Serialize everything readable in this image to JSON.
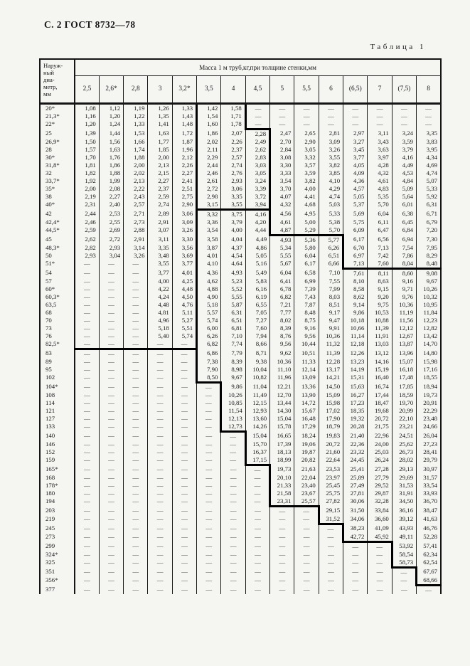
{
  "page": {
    "header": "С. 2 ГОСТ 8732—78",
    "table_label": "Таблица 1"
  },
  "table": {
    "corner_header": "Наруж-\nный\nдиа-\nметр,\nмм",
    "span_header": "Масса 1 м труб,кг,при толщине стенки,мм",
    "columns": [
      "2,5",
      "2,6*",
      "2,8",
      "3",
      "3,2*",
      "3,5",
      "4",
      "4,5",
      "5",
      "5,5",
      "6",
      "(6,5)",
      "7",
      "(7,5)",
      "8"
    ],
    "rows": [
      {
        "d": "20*",
        "v": [
          "1,08",
          "1,12",
          "1,19",
          "1,26",
          "1,33",
          "1,42",
          "1,58",
          "—",
          "—",
          "—",
          "—",
          "—",
          "—",
          "—",
          "—"
        ]
      },
      {
        "d": "21,3*",
        "v": [
          "1,16",
          "1,20",
          "1,22",
          "1,35",
          "1,43",
          "1,54",
          "1,71",
          "—",
          "—",
          "—",
          "—",
          "—",
          "—",
          "—",
          "—"
        ]
      },
      {
        "d": "22*",
        "v": [
          "1,20",
          "1,24",
          "1,33",
          "1,41",
          "1,48",
          "1,60",
          "1,78",
          "—",
          "—",
          "—",
          "—",
          "—",
          "—",
          "—",
          "—"
        ]
      },
      {
        "d": "25",
        "v": [
          "1,39",
          "1,44",
          "1,53",
          "1,63",
          "1,72",
          "1,86",
          "2,07",
          "2,28",
          "2,47",
          "2,65",
          "2,81",
          "2,97",
          "3,11",
          "3,24",
          "3,35"
        ]
      },
      {
        "d": "26,9*",
        "v": [
          "1,50",
          "1,56",
          "1,66",
          "1,77",
          "1,87",
          "2,02",
          "2,26",
          "2,49",
          "2,70",
          "2,90",
          "3,09",
          "3,27",
          "3,43",
          "3,59",
          "3,83"
        ]
      },
      {
        "d": "28",
        "v": [
          "1,57",
          "1,63",
          "1,74",
          "1,85",
          "1,96",
          "2,11",
          "2,37",
          "2,62",
          "2,84",
          "3,05",
          "3,26",
          "3,45",
          "3,63",
          "3,79",
          "3,95"
        ]
      },
      {
        "d": "30*",
        "v": [
          "1,70",
          "1,76",
          "1,88",
          "2,00",
          "2,12",
          "2,29",
          "2,57",
          "2,83",
          "3,08",
          "3,32",
          "3,55",
          "3,77",
          "3,97",
          "4,16",
          "4,34"
        ]
      },
      {
        "d": "31,8*",
        "v": [
          "1,81",
          "1,86",
          "2,00",
          "2,13",
          "2,26",
          "2,44",
          "2,74",
          "3,03",
          "3,30",
          "3,57",
          "3,82",
          "4,05",
          "4,28",
          "4,49",
          "4,69"
        ]
      },
      {
        "d": "32",
        "v": [
          "1,82",
          "1,88",
          "2,02",
          "2,15",
          "2,27",
          "2,46",
          "2,76",
          "3,05",
          "3,33",
          "3,59",
          "3,85",
          "4,09",
          "4,32",
          "4,53",
          "4,74"
        ]
      },
      {
        "d": "33,7*",
        "v": [
          "1,92",
          "1,99",
          "2,13",
          "2,27",
          "2,41",
          "2,61",
          "2,93",
          "3,24",
          "3,54",
          "3,82",
          "4,10",
          "4,36",
          "4,61",
          "4,84",
          "5,07"
        ]
      },
      {
        "d": "35*",
        "v": [
          "2,00",
          "2,08",
          "2,22",
          "2,37",
          "2,51",
          "2,72",
          "3,06",
          "3,39",
          "3,70",
          "4,00",
          "4,29",
          "4,57",
          "4,83",
          "5,09",
          "5,33"
        ]
      },
      {
        "d": "38",
        "v": [
          "2,19",
          "2,27",
          "2,43",
          "2,59",
          "2,75",
          "2,98",
          "3,35",
          "3,72",
          "4,07",
          "4,41",
          "4,74",
          "5,05",
          "5,35",
          "5,64",
          "5,92"
        ]
      },
      {
        "d": "40*",
        "v": [
          "2,31",
          "2,40",
          "2,57",
          "2,74",
          "2,90",
          "3,15",
          "3,55",
          "3,94",
          "4,32",
          "4,68",
          "5,03",
          "5,37",
          "5,70",
          "6,01",
          "6,31"
        ]
      },
      {
        "d": "42",
        "v": [
          "2,44",
          "2,53",
          "2,71",
          "2,89",
          "3,06",
          "3,32",
          "3,75",
          "4,16",
          "4,56",
          "4,95",
          "5,33",
          "5,69",
          "6,04",
          "6,38",
          "6,71"
        ]
      },
      {
        "d": "42,4*",
        "v": [
          "2,46",
          "2,55",
          "2,73",
          "2,91",
          "3,09",
          "3,36",
          "3,79",
          "4,20",
          "4,61",
          "5,00",
          "5,38",
          "5,75",
          "6,11",
          "6,45",
          "6,79"
        ]
      },
      {
        "d": "44,5*",
        "v": [
          "2,59",
          "2,69",
          "2,88",
          "3,07",
          "3,26",
          "3,54",
          "4,00",
          "4,44",
          "4,87",
          "5,29",
          "5,70",
          "6,09",
          "6,47",
          "6,84",
          "7,20"
        ]
      },
      {
        "d": "45",
        "v": [
          "2,62",
          "2,72",
          "2,91",
          "3,11",
          "3,30",
          "3,58",
          "4,04",
          "4,49",
          "4,93",
          "5,36",
          "5,77",
          "6,17",
          "6,56",
          "6,94",
          "7,30"
        ]
      },
      {
        "d": "48,3*",
        "v": [
          "2,82",
          "2,93",
          "3,14",
          "3,35",
          "3,56",
          "3,87",
          "4,37",
          "4,86",
          "5,34",
          "5,80",
          "6,26",
          "6,70",
          "7,13",
          "7,54",
          "7,95"
        ]
      },
      {
        "d": "50",
        "v": [
          "2,93",
          "3,04",
          "3,26",
          "3,48",
          "3,69",
          "4,01",
          "4,54",
          "5,05",
          "5,55",
          "6,04",
          "6,51",
          "6,97",
          "7,42",
          "7,86",
          "8,29"
        ]
      },
      {
        "d": "51*",
        "v": [
          "—",
          "—",
          "—",
          "3,55",
          "3,77",
          "4,10",
          "4,64",
          "5,16",
          "5,67",
          "6,17",
          "6,66",
          "7,13",
          "7,60",
          "8,04",
          "8,48"
        ]
      },
      {
        "d": "54",
        "v": [
          "—",
          "—",
          "—",
          "3,77",
          "4,01",
          "4,36",
          "4,93",
          "5,49",
          "6,04",
          "6,58",
          "7,10",
          "7,61",
          "8,11",
          "8,60",
          "9,08"
        ]
      },
      {
        "d": "57",
        "v": [
          "—",
          "—",
          "—",
          "4,00",
          "4,25",
          "4,62",
          "5,23",
          "5,83",
          "6,41",
          "6,99",
          "7,55",
          "8,10",
          "8,63",
          "9,16",
          "9,67"
        ]
      },
      {
        "d": "60*",
        "v": [
          "—",
          "—",
          "—",
          "4,22",
          "4,48",
          "4,88",
          "5,52",
          "6,16",
          "6,78",
          "7,39",
          "7,99",
          "8,58",
          "9,15",
          "9,71",
          "10,26"
        ]
      },
      {
        "d": "60,3*",
        "v": [
          "—",
          "—",
          "—",
          "4,24",
          "4,50",
          "4,90",
          "5,55",
          "6,19",
          "6,82",
          "7,43",
          "8,03",
          "8,62",
          "9,20",
          "9,76",
          "10,32"
        ]
      },
      {
        "d": "63,5",
        "v": [
          "—",
          "—",
          "—",
          "4,48",
          "4,76",
          "5,18",
          "5,87",
          "6,55",
          "7,21",
          "7,87",
          "8,51",
          "9,14",
          "9,75",
          "10,36",
          "10,95"
        ]
      },
      {
        "d": "68",
        "v": [
          "—",
          "—",
          "—",
          "4,81",
          "5,11",
          "5,57",
          "6,31",
          "7,05",
          "7,77",
          "8,48",
          "9,17",
          "9,86",
          "10,53",
          "11,19",
          "11,84"
        ]
      },
      {
        "d": "70",
        "v": [
          "—",
          "—",
          "—",
          "4,96",
          "5,27",
          "5,74",
          "6,51",
          "7,27",
          "8,02",
          "8,75",
          "9,47",
          "10,18",
          "10,88",
          "11,56",
          "12,23"
        ]
      },
      {
        "d": "73",
        "v": [
          "—",
          "—",
          "—",
          "5,18",
          "5,51",
          "6,00",
          "6,81",
          "7,60",
          "8,39",
          "9,16",
          "9,91",
          "10,66",
          "11,39",
          "12,12",
          "12,82"
        ]
      },
      {
        "d": "76",
        "v": [
          "—",
          "—",
          "—",
          "5,40",
          "5,74",
          "6,26",
          "7,10",
          "7,94",
          "8,76",
          "9,56",
          "10,36",
          "11,14",
          "11,91",
          "12,67",
          "13,42"
        ]
      },
      {
        "d": "82,5*",
        "v": [
          "—",
          "—",
          "—",
          "—",
          "—",
          "6,82",
          "7,74",
          "8,66",
          "9,56",
          "10,44",
          "11,32",
          "12,18",
          "13,03",
          "13,87",
          "14,70"
        ]
      },
      {
        "d": "83",
        "v": [
          "—",
          "—",
          "—",
          "—",
          "—",
          "6,86",
          "7,79",
          "8,71",
          "9,62",
          "10,51",
          "11,39",
          "12,26",
          "13,12",
          "13,96",
          "14,80"
        ]
      },
      {
        "d": "89",
        "v": [
          "—",
          "—",
          "—",
          "—",
          "—",
          "7,38",
          "8,39",
          "9,38",
          "10,36",
          "11,33",
          "12,28",
          "13,23",
          "14,16",
          "15,07",
          "15,98"
        ]
      },
      {
        "d": "95",
        "v": [
          "—",
          "—",
          "—",
          "—",
          "—",
          "7,90",
          "8,98",
          "10,04",
          "11,10",
          "12,14",
          "13,17",
          "14,19",
          "15,19",
          "16,18",
          "17,16"
        ]
      },
      {
        "d": "102",
        "v": [
          "—",
          "—",
          "—",
          "—",
          "—",
          "8,50",
          "9,67",
          "10,82",
          "11,96",
          "13,09",
          "14,21",
          "15,31",
          "16,40",
          "17,48",
          "18,55"
        ]
      },
      {
        "d": "104*",
        "v": [
          "—",
          "—",
          "—",
          "—",
          "—",
          "—",
          "9,86",
          "11,04",
          "12,21",
          "13,36",
          "14,50",
          "15,63",
          "16,74",
          "17,85",
          "18,94"
        ]
      },
      {
        "d": "108",
        "v": [
          "—",
          "—",
          "—",
          "—",
          "—",
          "—",
          "10,26",
          "11,49",
          "12,70",
          "13,90",
          "15,09",
          "16,27",
          "17,44",
          "18,59",
          "19,73"
        ]
      },
      {
        "d": "114",
        "v": [
          "—",
          "—",
          "—",
          "—",
          "—",
          "—",
          "10,85",
          "12,15",
          "13,44",
          "14,72",
          "15,98",
          "17,23",
          "18,47",
          "19,70",
          "20,91"
        ]
      },
      {
        "d": "121",
        "v": [
          "—",
          "—",
          "—",
          "—",
          "—",
          "—",
          "11,54",
          "12,93",
          "14,30",
          "15,67",
          "17,02",
          "18,35",
          "19,68",
          "20,99",
          "22,29"
        ]
      },
      {
        "d": "127",
        "v": [
          "—",
          "—",
          "—",
          "—",
          "—",
          "—",
          "12,13",
          "13,60",
          "15,04",
          "16,48",
          "17,90",
          "19,32",
          "20,72",
          "22,10",
          "23,48"
        ]
      },
      {
        "d": "133",
        "v": [
          "—",
          "—",
          "—",
          "—",
          "—",
          "—",
          "12,73",
          "14,26",
          "15,78",
          "17,29",
          "18,79",
          "20,28",
          "21,75",
          "23,21",
          "24,66"
        ]
      },
      {
        "d": "140",
        "v": [
          "—",
          "—",
          "—",
          "—",
          "—",
          "—",
          "—",
          "15,04",
          "16,65",
          "18,24",
          "19,83",
          "21,40",
          "22,96",
          "24,51",
          "26,04"
        ]
      },
      {
        "d": "146",
        "v": [
          "—",
          "—",
          "—",
          "—",
          "—",
          "—",
          "—",
          "15,70",
          "17,39",
          "19,06",
          "20,72",
          "22,36",
          "24,00",
          "25,62",
          "27,23"
        ]
      },
      {
        "d": "152",
        "v": [
          "—",
          "—",
          "—",
          "—",
          "—",
          "—",
          "—",
          "16,37",
          "18,13",
          "19,87",
          "21,60",
          "23,32",
          "25,03",
          "26,73",
          "28,41"
        ]
      },
      {
        "d": "159",
        "v": [
          "—",
          "—",
          "—",
          "—",
          "—",
          "—",
          "—",
          "17,15",
          "18,99",
          "20,82",
          "22,64",
          "24,45",
          "26,24",
          "28,02",
          "29,79"
        ]
      },
      {
        "d": "165*",
        "v": [
          "—",
          "—",
          "—",
          "—",
          "—",
          "—",
          "—",
          "—",
          "19,73",
          "21,63",
          "23,53",
          "25,41",
          "27,28",
          "29,13",
          "30,97"
        ]
      },
      {
        "d": "168",
        "v": [
          "—",
          "—",
          "—",
          "—",
          "—",
          "—",
          "—",
          "—",
          "20,10",
          "22,04",
          "23,97",
          "25,89",
          "27,79",
          "29,69",
          "31,57"
        ]
      },
      {
        "d": "178*",
        "v": [
          "—",
          "—",
          "—",
          "—",
          "—",
          "—",
          "—",
          "—",
          "21,33",
          "23,40",
          "25,45",
          "27,49",
          "29,52",
          "31,53",
          "33,54"
        ]
      },
      {
        "d": "180",
        "v": [
          "—",
          "—",
          "—",
          "—",
          "—",
          "—",
          "—",
          "—",
          "21,58",
          "23,67",
          "25,75",
          "27,81",
          "29,87",
          "31,91",
          "33,93"
        ]
      },
      {
        "d": "194",
        "v": [
          "—",
          "—",
          "—",
          "—",
          "—",
          "—",
          "—",
          "—",
          "23,31",
          "25,57",
          "27,82",
          "30,06",
          "32,28",
          "34,50",
          "36,70"
        ]
      },
      {
        "d": "203",
        "v": [
          "—",
          "—",
          "—",
          "—",
          "—",
          "—",
          "—",
          "—",
          "—",
          "—",
          "29,15",
          "31,50",
          "33,84",
          "36,16",
          "38,47"
        ]
      },
      {
        "d": "219",
        "v": [
          "—",
          "—",
          "—",
          "—",
          "—",
          "—",
          "—",
          "—",
          "—",
          "—",
          "31,52",
          "34,06",
          "36,60",
          "39,12",
          "41,63"
        ]
      },
      {
        "d": "245",
        "v": [
          "—",
          "—",
          "—",
          "—",
          "—",
          "—",
          "—",
          "—",
          "—",
          "—",
          "—",
          "38,23",
          "41,09",
          "43,93",
          "46,76"
        ]
      },
      {
        "d": "273",
        "v": [
          "—",
          "—",
          "—",
          "—",
          "—",
          "—",
          "—",
          "—",
          "—",
          "—",
          "—",
          "42,72",
          "45,92",
          "49,11",
          "52,28"
        ]
      },
      {
        "d": "299",
        "v": [
          "—",
          "—",
          "—",
          "—",
          "—",
          "—",
          "—",
          "—",
          "—",
          "—",
          "—",
          "—",
          "—",
          "53,92",
          "57,41"
        ]
      },
      {
        "d": "324*",
        "v": [
          "—",
          "—",
          "—",
          "—",
          "—",
          "—",
          "—",
          "—",
          "—",
          "—",
          "—",
          "—",
          "—",
          "58,54",
          "62,34"
        ]
      },
      {
        "d": "325",
        "v": [
          "—",
          "—",
          "—",
          "—",
          "—",
          "—",
          "—",
          "—",
          "—",
          "—",
          "—",
          "—",
          "—",
          "58,73",
          "62,54"
        ]
      },
      {
        "d": "351",
        "v": [
          "—",
          "—",
          "—",
          "—",
          "—",
          "—",
          "—",
          "—",
          "—",
          "—",
          "—",
          "—",
          "—",
          "—",
          "67,67"
        ]
      },
      {
        "d": "356*",
        "v": [
          "—",
          "—",
          "—",
          "—",
          "—",
          "—",
          "—",
          "—",
          "—",
          "—",
          "—",
          "—",
          "—",
          "—",
          "68,66"
        ]
      },
      {
        "d": "377",
        "v": [
          "—",
          "—",
          "—",
          "—",
          "—",
          "—",
          "—",
          "—",
          "—",
          "—",
          "—",
          "—",
          "—",
          "—",
          "—"
        ]
      }
    ]
  }
}
